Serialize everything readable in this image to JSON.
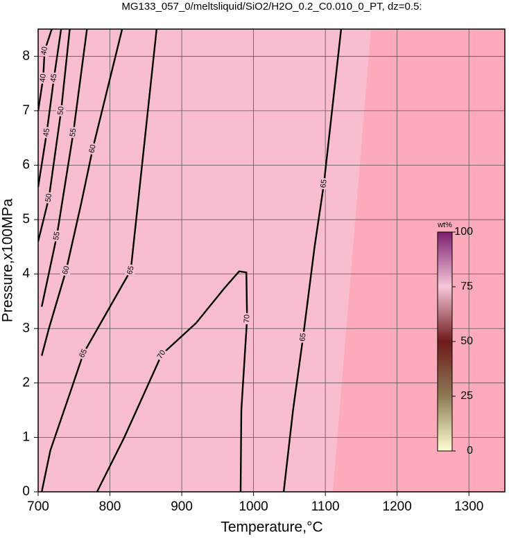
{
  "chart_data": {
    "type": "contour",
    "title": "MG133_057_0/meltsliquid/SiO2/H2O_0.2_C0.010_0_PT, dz=0.5:",
    "x_label": "Temperature,°C",
    "y_label": "Pressure,x100MPa",
    "xlim": [
      700,
      1350
    ],
    "xticks": [
      700,
      800,
      900,
      1000,
      1100,
      1200,
      1300
    ],
    "ylim": [
      0,
      8.5
    ],
    "yticks": [
      0,
      1,
      2,
      3,
      4,
      5,
      6,
      7,
      8
    ],
    "grid": true,
    "line_color": "#000000",
    "fill_colors": [
      "#f9bdd0",
      "#fdabbb"
    ],
    "contours": [
      {
        "level": 40,
        "x": [
          700,
          707,
          709,
          719
        ],
        "y": [
          7.0,
          7.6,
          8.1,
          8.5
        ]
      },
      {
        "level": 45,
        "x": [
          700,
          712,
          722,
          732
        ],
        "y": [
          5.6,
          6.6,
          7.6,
          8.5
        ]
      },
      {
        "level": 50,
        "x": [
          700,
          715,
          732,
          744
        ],
        "y": [
          4.6,
          5.4,
          7.0,
          8.5
        ]
      },
      {
        "level": 55,
        "x": [
          705,
          726,
          749,
          768
        ],
        "y": [
          3.4,
          4.7,
          6.6,
          8.5
        ]
      },
      {
        "level": 60,
        "x": [
          705,
          715,
          739,
          760,
          776,
          817
        ],
        "y": [
          2.5,
          3.0,
          4.07,
          5.3,
          6.3,
          8.5
        ]
      },
      {
        "level": 65,
        "x": [
          705,
          717,
          744,
          763,
          829,
          865
        ],
        "y": [
          0,
          0.76,
          1.8,
          2.54,
          4.07,
          8.5
        ]
      },
      {
        "level": 70,
        "x": [
          782,
          820,
          872,
          920,
          960,
          980,
          990,
          991,
          983,
          982
        ],
        "y": [
          0,
          1.0,
          2.52,
          3.1,
          3.75,
          4.05,
          4.03,
          3.18,
          1.5,
          0
        ]
      },
      {
        "level": 65,
        "x": [
          1042,
          1055,
          1069,
          1085,
          1098,
          1122
        ],
        "y": [
          0,
          1.5,
          2.84,
          4.5,
          5.66,
          8.5
        ]
      }
    ],
    "colorbar": {
      "label": "wt%",
      "lim": [
        0,
        100
      ],
      "ticks": [
        0,
        25,
        50,
        75,
        100
      ],
      "colors": [
        "#ffffd2",
        "#8c7a55",
        "#6e1a1a",
        "#f7c6d9",
        "#7a1f6e"
      ]
    }
  }
}
